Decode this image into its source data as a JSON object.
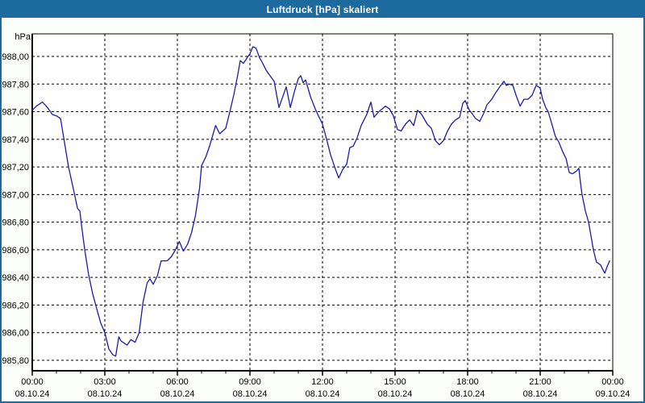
{
  "window": {
    "title": "Luftdruck [hPa] skaliert"
  },
  "colors": {
    "titlebar_bg": "#1C6A9E",
    "window_border": "#1C6A9E",
    "chart_bg": "#FCFEFB",
    "plot_bg": "#FFFFFF",
    "line": "#1B1BAA",
    "grid": "#000000",
    "text": "#000000",
    "title_text": "#FFFFFF"
  },
  "chart_data": {
    "type": "line",
    "title": "Luftdruck [hPa] skaliert",
    "ylabel": "hPa",
    "xlabel": "",
    "legend": "none",
    "grid": "dashed",
    "ylim": [
      985.72,
      988.16
    ],
    "xlim_hours": [
      0,
      24
    ],
    "y_ticks": [
      {
        "label": "988,00",
        "value": 988.0
      },
      {
        "label": "987,80",
        "value": 987.8
      },
      {
        "label": "987,60",
        "value": 987.6
      },
      {
        "label": "987,40",
        "value": 987.4
      },
      {
        "label": "987,20",
        "value": 987.2
      },
      {
        "label": "987,00",
        "value": 987.0
      },
      {
        "label": "986,80",
        "value": 986.8
      },
      {
        "label": "986,60",
        "value": 986.6
      },
      {
        "label": "986,40",
        "value": 986.4
      },
      {
        "label": "986,20",
        "value": 986.2
      },
      {
        "label": "986,00",
        "value": 986.0
      },
      {
        "label": "985,80",
        "value": 985.8
      }
    ],
    "x_ticks": [
      {
        "hour": 0,
        "label": "00:00",
        "date": "08.10.24"
      },
      {
        "hour": 3,
        "label": "03:00",
        "date": "08.10.24"
      },
      {
        "hour": 6,
        "label": "06:00",
        "date": "08.10.24"
      },
      {
        "hour": 9,
        "label": "09:00",
        "date": "08.10.24"
      },
      {
        "hour": 12,
        "label": "12:00",
        "date": "08.10.24"
      },
      {
        "hour": 15,
        "label": "15:00",
        "date": "08.10.24"
      },
      {
        "hour": 18,
        "label": "18:00",
        "date": "08.10.24"
      },
      {
        "hour": 21,
        "label": "21:00",
        "date": "08.10.24"
      },
      {
        "hour": 24,
        "label": "00:00",
        "date": "09.10.24"
      }
    ],
    "minor_tick_every_hours": 1,
    "series": [
      {
        "name": "Luftdruck",
        "unit": "hPa",
        "color": "#1B1BAA",
        "points": [
          [
            0.0,
            987.61
          ],
          [
            0.17,
            987.64
          ],
          [
            0.42,
            987.67
          ],
          [
            0.58,
            987.64
          ],
          [
            0.67,
            987.62
          ],
          [
            0.83,
            987.58
          ],
          [
            1.0,
            987.57
          ],
          [
            1.17,
            987.55
          ],
          [
            1.33,
            987.38
          ],
          [
            1.5,
            987.2
          ],
          [
            1.75,
            987.0
          ],
          [
            1.87,
            986.9
          ],
          [
            1.97,
            986.88
          ],
          [
            2.05,
            986.76
          ],
          [
            2.17,
            986.6
          ],
          [
            2.33,
            986.42
          ],
          [
            2.5,
            986.28
          ],
          [
            2.67,
            986.17
          ],
          [
            2.83,
            986.07
          ],
          [
            3.0,
            986.0
          ],
          [
            3.17,
            985.88
          ],
          [
            3.33,
            985.84
          ],
          [
            3.45,
            985.83
          ],
          [
            3.58,
            985.97
          ],
          [
            3.67,
            985.94
          ],
          [
            3.92,
            985.91
          ],
          [
            4.08,
            985.95
          ],
          [
            4.25,
            985.93
          ],
          [
            4.42,
            986.0
          ],
          [
            4.58,
            986.22
          ],
          [
            4.75,
            986.36
          ],
          [
            4.87,
            986.39
          ],
          [
            5.0,
            986.35
          ],
          [
            5.17,
            986.41
          ],
          [
            5.33,
            986.52
          ],
          [
            5.58,
            986.52
          ],
          [
            5.75,
            986.55
          ],
          [
            5.92,
            986.6
          ],
          [
            6.08,
            986.66
          ],
          [
            6.25,
            986.59
          ],
          [
            6.42,
            986.64
          ],
          [
            6.58,
            986.72
          ],
          [
            6.75,
            986.85
          ],
          [
            6.92,
            987.05
          ],
          [
            7.0,
            987.21
          ],
          [
            7.17,
            987.27
          ],
          [
            7.33,
            987.35
          ],
          [
            7.58,
            987.5
          ],
          [
            7.75,
            987.44
          ],
          [
            8.0,
            987.48
          ],
          [
            8.17,
            987.6
          ],
          [
            8.33,
            987.72
          ],
          [
            8.5,
            987.87
          ],
          [
            8.6,
            987.97
          ],
          [
            8.73,
            987.95
          ],
          [
            8.92,
            988.0
          ],
          [
            9.0,
            988.02
          ],
          [
            9.12,
            988.07
          ],
          [
            9.25,
            988.06
          ],
          [
            9.4,
            987.99
          ],
          [
            9.5,
            987.96
          ],
          [
            9.67,
            987.9
          ],
          [
            9.83,
            987.86
          ],
          [
            10.0,
            987.82
          ],
          [
            10.2,
            987.63
          ],
          [
            10.5,
            987.78
          ],
          [
            10.67,
            987.63
          ],
          [
            10.83,
            987.74
          ],
          [
            11.0,
            987.84
          ],
          [
            11.1,
            987.86
          ],
          [
            11.2,
            987.81
          ],
          [
            11.3,
            987.83
          ],
          [
            11.5,
            987.71
          ],
          [
            11.7,
            987.62
          ],
          [
            11.83,
            987.57
          ],
          [
            12.0,
            987.51
          ],
          [
            12.17,
            987.4
          ],
          [
            12.33,
            987.29
          ],
          [
            12.5,
            987.2
          ],
          [
            12.67,
            987.12
          ],
          [
            12.83,
            987.18
          ],
          [
            13.0,
            987.22
          ],
          [
            13.13,
            987.34
          ],
          [
            13.27,
            987.35
          ],
          [
            13.43,
            987.41
          ],
          [
            13.6,
            987.5
          ],
          [
            13.83,
            987.58
          ],
          [
            14.0,
            987.67
          ],
          [
            14.13,
            987.56
          ],
          [
            14.33,
            987.6
          ],
          [
            14.6,
            987.64
          ],
          [
            14.77,
            987.62
          ],
          [
            14.93,
            987.57
          ],
          [
            15.1,
            987.47
          ],
          [
            15.25,
            987.46
          ],
          [
            15.43,
            987.51
          ],
          [
            15.6,
            987.54
          ],
          [
            15.77,
            987.5
          ],
          [
            15.93,
            987.61
          ],
          [
            16.1,
            987.58
          ],
          [
            16.33,
            987.51
          ],
          [
            16.5,
            987.48
          ],
          [
            16.67,
            987.39
          ],
          [
            16.83,
            987.36
          ],
          [
            17.0,
            987.39
          ],
          [
            17.17,
            987.46
          ],
          [
            17.33,
            987.51
          ],
          [
            17.5,
            987.54
          ],
          [
            17.67,
            987.56
          ],
          [
            17.8,
            987.66
          ],
          [
            17.9,
            987.68
          ],
          [
            18.07,
            987.61
          ],
          [
            18.17,
            987.59
          ],
          [
            18.33,
            987.55
          ],
          [
            18.5,
            987.53
          ],
          [
            18.67,
            987.59
          ],
          [
            18.8,
            987.65
          ],
          [
            19.0,
            987.69
          ],
          [
            19.17,
            987.74
          ],
          [
            19.33,
            987.78
          ],
          [
            19.5,
            987.82
          ],
          [
            19.6,
            987.79
          ],
          [
            19.73,
            987.8
          ],
          [
            19.87,
            987.79
          ],
          [
            20.0,
            987.72
          ],
          [
            20.17,
            987.64
          ],
          [
            20.33,
            987.69
          ],
          [
            20.5,
            987.69
          ],
          [
            20.67,
            987.72
          ],
          [
            20.83,
            987.79
          ],
          [
            20.93,
            987.78
          ],
          [
            21.0,
            987.77
          ],
          [
            21.1,
            987.69
          ],
          [
            21.23,
            987.63
          ],
          [
            21.33,
            987.6
          ],
          [
            21.5,
            987.5
          ],
          [
            21.63,
            987.42
          ],
          [
            21.77,
            987.38
          ],
          [
            21.93,
            987.31
          ],
          [
            22.07,
            987.26
          ],
          [
            22.2,
            987.16
          ],
          [
            22.33,
            987.15
          ],
          [
            22.5,
            987.17
          ],
          [
            22.6,
            987.19
          ],
          [
            22.67,
            987.08
          ],
          [
            22.73,
            987.0
          ],
          [
            22.87,
            986.88
          ],
          [
            23.0,
            986.8
          ],
          [
            23.2,
            986.6
          ],
          [
            23.27,
            986.55
          ],
          [
            23.33,
            986.51
          ],
          [
            23.42,
            986.5
          ],
          [
            23.5,
            986.49
          ],
          [
            23.58,
            986.46
          ],
          [
            23.67,
            986.43
          ],
          [
            23.77,
            986.48
          ],
          [
            23.87,
            986.52
          ]
        ]
      }
    ]
  }
}
